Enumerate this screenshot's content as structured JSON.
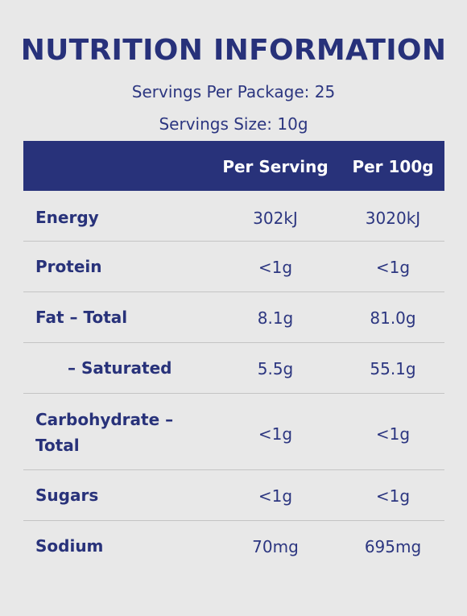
{
  "panel": {
    "title": "NUTRITION INFORMATION",
    "servings_per_package": "Servings Per Package: 25",
    "serving_size": "Servings Size: 10g"
  },
  "table": {
    "headers": {
      "label": "",
      "per_serving": "Per Serving",
      "per_100g": "Per 100g"
    },
    "rows": [
      {
        "label": "Energy",
        "per_serving": "302kJ",
        "per_100g": "3020kJ"
      },
      {
        "label": "Protein",
        "per_serving": "<1g",
        "per_100g": "<1g"
      },
      {
        "label": "Fat – Total",
        "per_serving": "8.1g",
        "per_100g": "81.0g"
      },
      {
        "label": "– Saturated",
        "per_serving": "5.5g",
        "per_100g": "55.1g"
      },
      {
        "label": "Carbohydrate –",
        "label_line2": "Total",
        "per_serving": "<1g",
        "per_100g": "<1g"
      },
      {
        "label": "Sugars",
        "per_serving": "<1g",
        "per_100g": "<1g"
      },
      {
        "label": "Sodium",
        "per_serving": "70mg",
        "per_100g": "695mg"
      }
    ]
  },
  "colors": {
    "background": "#e8e8e8",
    "navy": "#28327a",
    "divider": "#c4c4c4",
    "header_text": "#ffffff"
  }
}
